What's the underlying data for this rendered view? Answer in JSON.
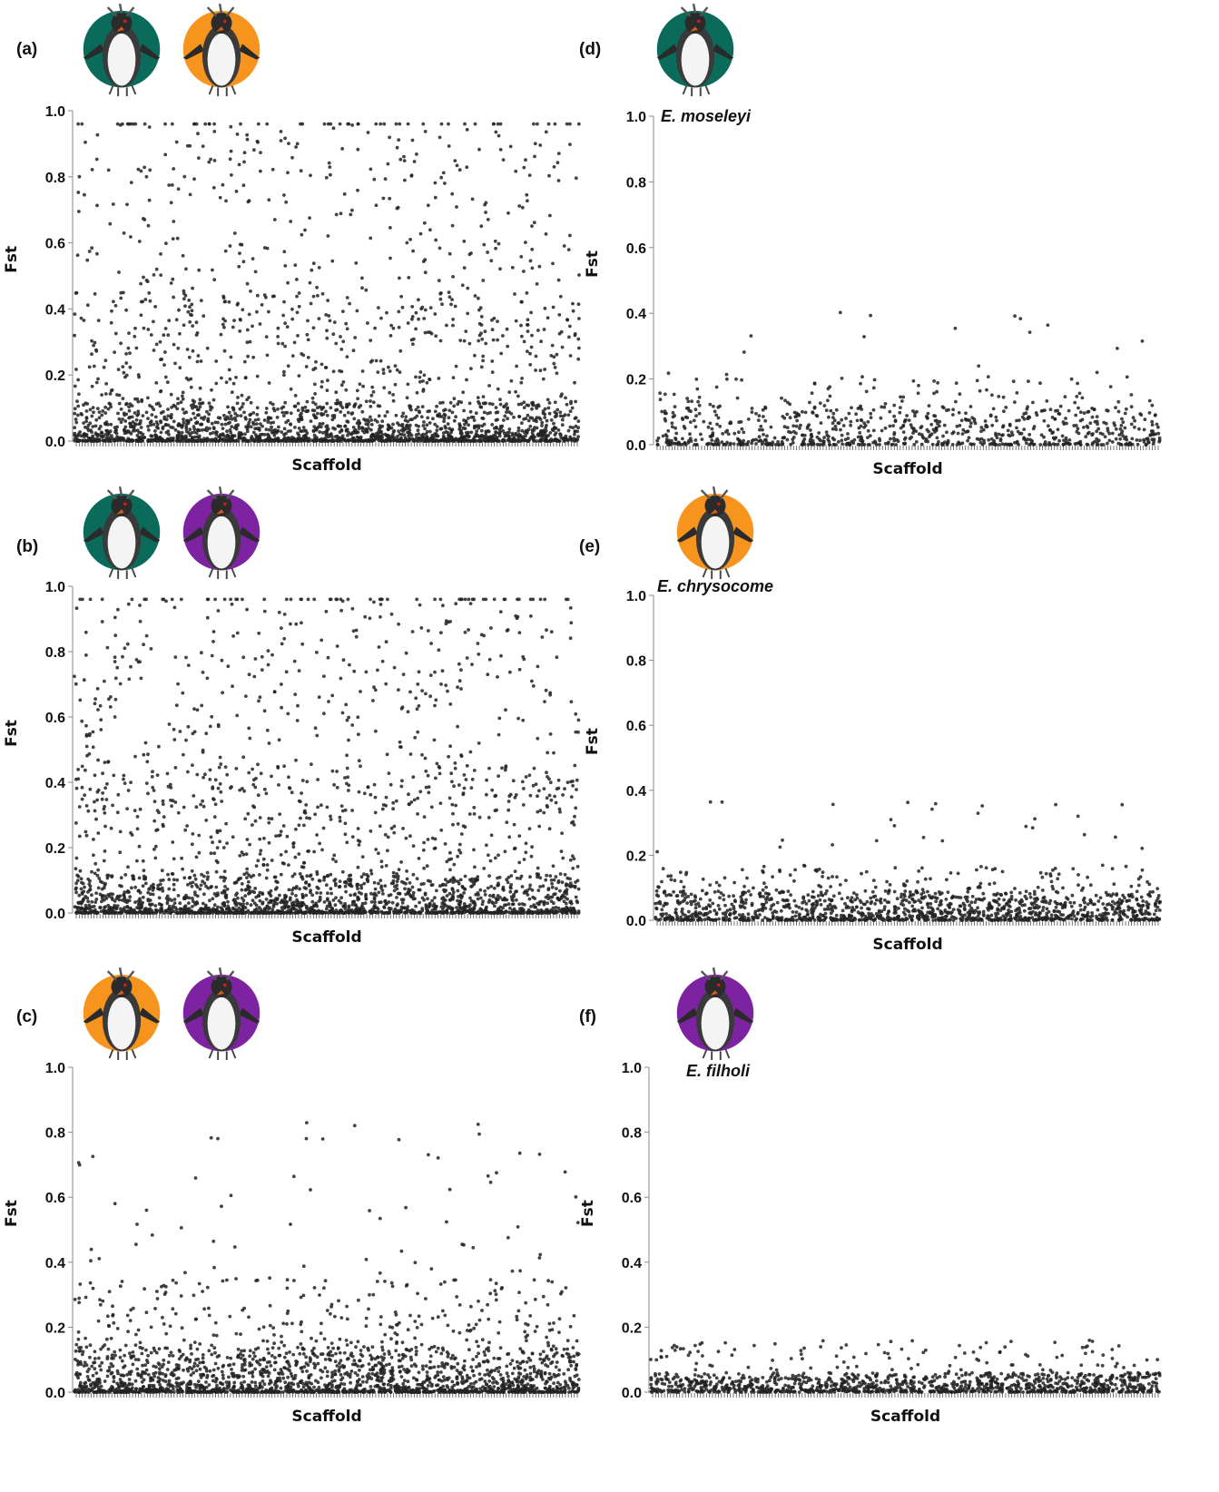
{
  "colors": {
    "green": "#0a6b5a",
    "orange": "#f7941d",
    "purple": "#7d22a0",
    "point": "#222222"
  },
  "chart_data": [
    {
      "id": "a",
      "type": "scatter",
      "panel_label": "(a)",
      "species": "",
      "icons": [
        {
          "name": "rockhopper-penguin-green-icon",
          "color": "green"
        },
        {
          "name": "rockhopper-penguin-orange-icon",
          "color": "orange"
        }
      ],
      "xlabel": "Scaffold",
      "ylabel": "Fst",
      "ylim": [
        0,
        1.0
      ],
      "yticks": [
        "0.0",
        "0.2",
        "0.4",
        "0.6",
        "0.8",
        "1.0"
      ],
      "n_points": 2600,
      "max_fst": 0.96,
      "distribution": "dense near 0, many high outliers to 0.96"
    },
    {
      "id": "d",
      "type": "scatter",
      "panel_label": "(d)",
      "species": "E. moseleyi",
      "icons": [
        {
          "name": "rockhopper-penguin-green-icon",
          "color": "green"
        }
      ],
      "xlabel": "Scaffold",
      "ylabel": "Fst",
      "ylim": [
        0,
        1.0
      ],
      "yticks": [
        "0.0",
        "0.2",
        "0.4",
        "0.6",
        "0.8",
        "1.0"
      ],
      "n_points": 900,
      "max_fst": 0.41,
      "distribution": "mostly below 0.2, few outliers near 0.4"
    },
    {
      "id": "b",
      "type": "scatter",
      "panel_label": "(b)",
      "species": "",
      "icons": [
        {
          "name": "rockhopper-penguin-green-icon",
          "color": "green"
        },
        {
          "name": "rockhopper-penguin-purple-icon",
          "color": "purple"
        }
      ],
      "xlabel": "Scaffold",
      "ylabel": "Fst",
      "ylim": [
        0,
        1.0
      ],
      "yticks": [
        "0.0",
        "0.2",
        "0.4",
        "0.6",
        "0.8",
        "1.0"
      ],
      "n_points": 2600,
      "max_fst": 0.96,
      "distribution": "dense near 0, many high outliers to 0.96"
    },
    {
      "id": "e",
      "type": "scatter",
      "panel_label": "(e)",
      "species": "E. chrysocome",
      "icons": [
        {
          "name": "rockhopper-penguin-orange-icon",
          "color": "orange"
        }
      ],
      "xlabel": "Scaffold",
      "ylabel": "Fst",
      "ylim": [
        0,
        1.0
      ],
      "yticks": [
        "0.0",
        "0.2",
        "0.4",
        "0.6",
        "0.8",
        "1.0"
      ],
      "n_points": 1400,
      "max_fst": 0.37,
      "distribution": "mostly below 0.15, few outliers near 0.3"
    },
    {
      "id": "c",
      "type": "scatter",
      "panel_label": "(c)",
      "species": "",
      "icons": [
        {
          "name": "rockhopper-penguin-orange-icon",
          "color": "orange"
        },
        {
          "name": "rockhopper-penguin-purple-icon",
          "color": "purple"
        }
      ],
      "xlabel": "Scaffold",
      "ylabel": "Fst",
      "ylim": [
        0,
        1.0
      ],
      "yticks": [
        "0.0",
        "0.2",
        "0.4",
        "0.6",
        "0.8",
        "1.0"
      ],
      "n_points": 2200,
      "max_fst": 0.83,
      "distribution": "dense near 0, sparse outliers up to 0.83"
    },
    {
      "id": "f",
      "type": "scatter",
      "panel_label": "(f)",
      "species": "E. filholi",
      "icons": [
        {
          "name": "rockhopper-penguin-purple-icon",
          "color": "purple"
        }
      ],
      "xlabel": "Scaffold",
      "ylabel": "Fst",
      "ylim": [
        0,
        1.0
      ],
      "yticks": [
        "0.0",
        "0.2",
        "0.4",
        "0.6",
        "0.8",
        "1.0"
      ],
      "n_points": 1200,
      "max_fst": 0.16,
      "distribution": "mostly below 0.1"
    }
  ]
}
